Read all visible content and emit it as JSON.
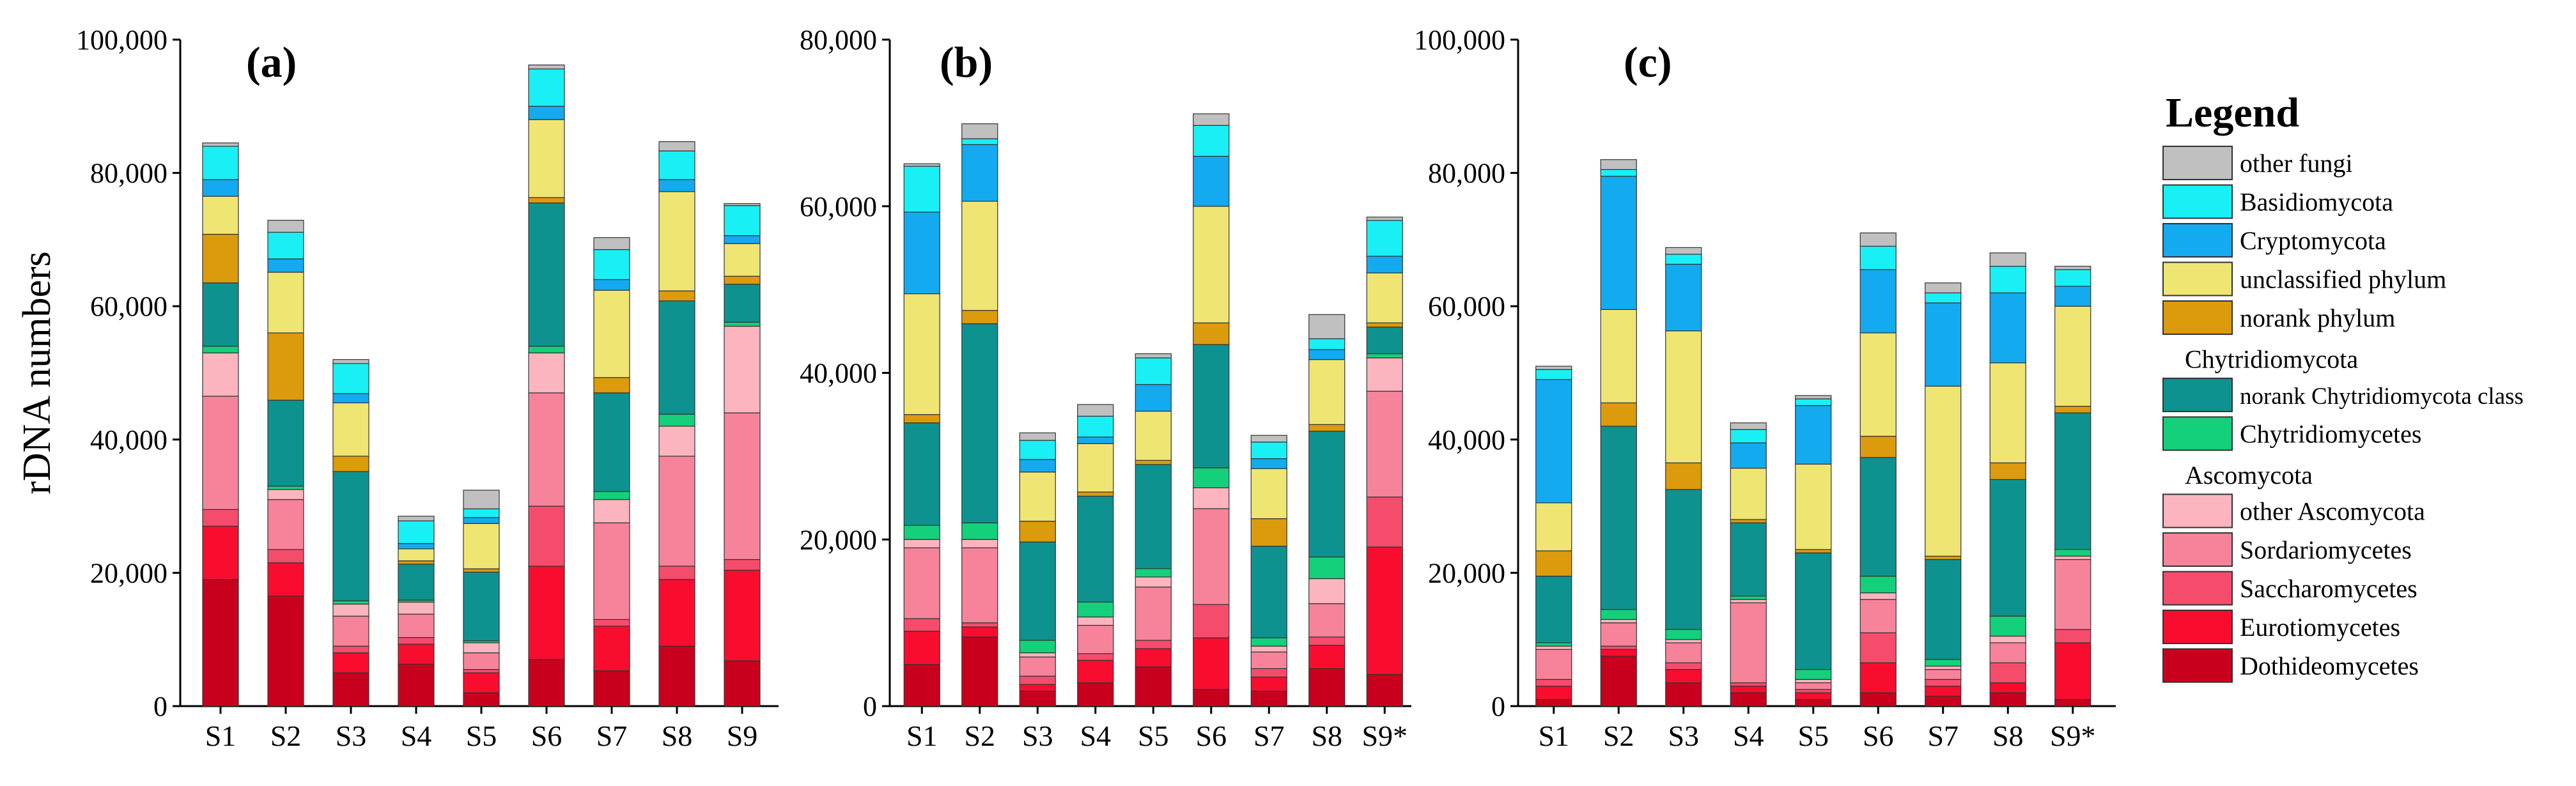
{
  "colors": {
    "other_fungi": "#c0c0c0",
    "basidiomycota": "#19f0f5",
    "cryptomycota": "#14aaf0",
    "unclassified_phylum": "#efe573",
    "norank_phylum": "#dc9a0d",
    "norank_chytridiomycota_class": "#0e9290",
    "chytridiomycetes": "#15d07a",
    "other_ascomycota": "#fcb4be",
    "sordariomycetes": "#f7839a",
    "saccharomycetes": "#f64c6c",
    "eurotiomycetes": "#f80d2f",
    "dothideomycetes": "#c8001d"
  },
  "legend": {
    "title": "Legend",
    "groups": [
      {
        "type": "item",
        "label": "other fungi",
        "color_key": "other_fungi"
      },
      {
        "type": "item",
        "label": "Basidiomycota",
        "color_key": "basidiomycota"
      },
      {
        "type": "item",
        "label": "Cryptomycota",
        "color_key": "cryptomycota"
      },
      {
        "type": "item",
        "label": "unclassified phylum",
        "color_key": "unclassified_phylum"
      },
      {
        "type": "item",
        "label": "norank phylum",
        "color_key": "norank_phylum"
      },
      {
        "type": "header",
        "label": "Chytridiomycota"
      },
      {
        "type": "item",
        "label": "norank Chytridiomycota class",
        "color_key": "norank_chytridiomycota_class",
        "small": true
      },
      {
        "type": "item",
        "label": "Chytridiomycetes",
        "color_key": "chytridiomycetes"
      },
      {
        "type": "header",
        "label": "Ascomycota"
      },
      {
        "type": "item",
        "label": "other Ascomycota",
        "color_key": "other_ascomycota"
      },
      {
        "type": "item",
        "label": "Sordariomycetes",
        "color_key": "sordariomycetes"
      },
      {
        "type": "item",
        "label": "Saccharomycetes",
        "color_key": "saccharomycetes"
      },
      {
        "type": "item",
        "label": "Eurotiomycetes",
        "color_key": "eurotiomycetes"
      },
      {
        "type": "item",
        "label": "Dothideomycetes",
        "color_key": "dothideomycetes"
      }
    ]
  },
  "chart_data": [
    {
      "type": "bar",
      "stacked": true,
      "panel_label": "(a)",
      "ylabel": "rDNA numbers",
      "xlabel": "",
      "ylim": [
        0,
        100000
      ],
      "yticks": [
        0,
        20000,
        40000,
        60000,
        80000,
        100000
      ],
      "ytick_labels": [
        "0",
        "20,000",
        "40,000",
        "60,000",
        "80,000",
        "100,000"
      ],
      "categories": [
        "S1",
        "S2",
        "S3",
        "S4",
        "S5",
        "S6",
        "S7",
        "S8",
        "S9"
      ],
      "series": [
        {
          "name": "Dothideomycetes",
          "color_key": "dothideomycetes",
          "values": [
            19000,
            16500,
            5000,
            6300,
            2000,
            7000,
            5300,
            9000,
            6800
          ]
        },
        {
          "name": "Eurotiomycetes",
          "color_key": "eurotiomycetes",
          "values": [
            8000,
            5000,
            3000,
            3000,
            3000,
            14000,
            6700,
            10000,
            13600
          ]
        },
        {
          "name": "Saccharomycetes",
          "color_key": "saccharomycetes",
          "values": [
            2500,
            2000,
            1000,
            1000,
            500,
            9000,
            1000,
            2000,
            1600
          ]
        },
        {
          "name": "Sordariomycetes",
          "color_key": "sordariomycetes",
          "values": [
            17000,
            7500,
            4500,
            3500,
            2500,
            17000,
            14500,
            16500,
            22000
          ]
        },
        {
          "name": "other Ascomycota",
          "color_key": "other_ascomycota",
          "values": [
            6500,
            1500,
            1800,
            1800,
            1500,
            6000,
            3500,
            4500,
            13000
          ]
        },
        {
          "name": "Chytridiomycetes",
          "color_key": "chytridiomycetes",
          "values": [
            1000,
            500,
            500,
            300,
            300,
            1000,
            1200,
            1800,
            600
          ]
        },
        {
          "name": "norank Chytridiomycota class",
          "color_key": "norank_chytridiomycota_class",
          "values": [
            9500,
            12900,
            19400,
            5400,
            10300,
            21500,
            14800,
            17000,
            5700
          ]
        },
        {
          "name": "norank phylum",
          "color_key": "norank_phylum",
          "values": [
            7300,
            10100,
            2300,
            500,
            500,
            800,
            2300,
            1500,
            1200
          ]
        },
        {
          "name": "unclassified phylum",
          "color_key": "unclassified_phylum",
          "values": [
            5700,
            9100,
            8000,
            1800,
            6800,
            11700,
            13100,
            14900,
            4900
          ]
        },
        {
          "name": "Cryptomycota",
          "color_key": "cryptomycota",
          "values": [
            2500,
            2000,
            1400,
            800,
            900,
            2000,
            1600,
            1800,
            1200
          ]
        },
        {
          "name": "Basidiomycota",
          "color_key": "basidiomycota",
          "values": [
            5000,
            4000,
            4500,
            3400,
            1300,
            5600,
            4500,
            4300,
            4500
          ]
        },
        {
          "name": "other fungi",
          "color_key": "other_fungi",
          "values": [
            500,
            1800,
            600,
            700,
            2800,
            600,
            1800,
            1400,
            300
          ]
        }
      ]
    },
    {
      "type": "bar",
      "stacked": true,
      "panel_label": "(b)",
      "ylabel": "",
      "xlabel": "",
      "ylim": [
        0,
        80000
      ],
      "yticks": [
        0,
        20000,
        40000,
        60000,
        80000
      ],
      "ytick_labels": [
        "0",
        "20,000",
        "40,000",
        "60,000",
        "80,000"
      ],
      "categories": [
        "S1",
        "S2",
        "S3",
        "S4",
        "S5",
        "S6",
        "S7",
        "S8",
        "S9*"
      ],
      "series": [
        {
          "name": "Dothideomycetes",
          "color_key": "dothideomycetes",
          "values": [
            5000,
            8300,
            1800,
            2800,
            4700,
            2000,
            1800,
            4500,
            3800
          ]
        },
        {
          "name": "Eurotiomycetes",
          "color_key": "eurotiomycetes",
          "values": [
            4000,
            1200,
            800,
            2700,
            2200,
            6200,
            1700,
            2800,
            15300
          ]
        },
        {
          "name": "Saccharomycetes",
          "color_key": "saccharomycetes",
          "values": [
            1500,
            500,
            1000,
            800,
            1000,
            4000,
            1000,
            1000,
            6000
          ]
        },
        {
          "name": "Sordariomycetes",
          "color_key": "sordariomycetes",
          "values": [
            8500,
            9000,
            2300,
            3400,
            6400,
            11500,
            2000,
            4000,
            12700
          ]
        },
        {
          "name": "other Ascomycota",
          "color_key": "other_ascomycota",
          "values": [
            1000,
            1000,
            500,
            1000,
            1200,
            2500,
            700,
            3000,
            4000
          ]
        },
        {
          "name": "Chytridiomycetes",
          "color_key": "chytridiomycetes",
          "values": [
            1700,
            2000,
            1500,
            1800,
            1000,
            2400,
            1000,
            2600,
            500
          ]
        },
        {
          "name": "norank Chytridiomycota class",
          "color_key": "norank_chytridiomycota_class",
          "values": [
            12300,
            23900,
            11800,
            12700,
            12500,
            14800,
            11000,
            15100,
            3200
          ]
        },
        {
          "name": "norank phylum",
          "color_key": "norank_phylum",
          "values": [
            1000,
            1600,
            2500,
            500,
            500,
            2600,
            3300,
            800,
            500
          ]
        },
        {
          "name": "unclassified phylum",
          "color_key": "unclassified_phylum",
          "values": [
            14500,
            13100,
            5900,
            5800,
            5900,
            14000,
            6000,
            7800,
            6000
          ]
        },
        {
          "name": "Cryptomycota",
          "color_key": "cryptomycota",
          "values": [
            9800,
            6800,
            1500,
            800,
            3200,
            6000,
            1200,
            1200,
            2000
          ]
        },
        {
          "name": "Basidiomycota",
          "color_key": "basidiomycota",
          "values": [
            5500,
            700,
            2300,
            2500,
            3200,
            3700,
            2000,
            1300,
            4300
          ]
        },
        {
          "name": "other fungi",
          "color_key": "other_fungi",
          "values": [
            300,
            1800,
            900,
            1400,
            500,
            1400,
            800,
            2900,
            400
          ]
        }
      ]
    },
    {
      "type": "bar",
      "stacked": true,
      "panel_label": "(c)",
      "ylabel": "",
      "xlabel": "",
      "ylim": [
        0,
        100000
      ],
      "yticks": [
        0,
        20000,
        40000,
        60000,
        80000,
        100000
      ],
      "ytick_labels": [
        "0",
        "20,000",
        "40,000",
        "60,000",
        "80,000",
        "100,000"
      ],
      "categories": [
        "S1",
        "S2",
        "S3",
        "S4",
        "S5",
        "S6",
        "S7",
        "S8",
        "S9*"
      ],
      "series": [
        {
          "name": "Dothideomycetes",
          "color_key": "dothideomycetes",
          "values": [
            1000,
            7500,
            3500,
            2000,
            1000,
            2000,
            1500,
            2000,
            1000
          ]
        },
        {
          "name": "Eurotiomycetes",
          "color_key": "eurotiomycetes",
          "values": [
            2000,
            1000,
            2000,
            1000,
            1000,
            4500,
            1500,
            1500,
            8500
          ]
        },
        {
          "name": "Saccharomycetes",
          "color_key": "saccharomycetes",
          "values": [
            1000,
            500,
            1000,
            500,
            500,
            4500,
            1000,
            3000,
            2000
          ]
        },
        {
          "name": "Sordariomycetes",
          "color_key": "sordariomycetes",
          "values": [
            4500,
            3500,
            3000,
            12000,
            1000,
            5000,
            1500,
            3000,
            10500
          ]
        },
        {
          "name": "other Ascomycota",
          "color_key": "other_ascomycota",
          "values": [
            500,
            500,
            500,
            500,
            500,
            1000,
            500,
            1000,
            500
          ]
        },
        {
          "name": "Chytridiomycetes",
          "color_key": "chytridiomycetes",
          "values": [
            500,
            1500,
            1500,
            500,
            1500,
            2500,
            1000,
            3000,
            1000
          ]
        },
        {
          "name": "norank Chytridiomycota class",
          "color_key": "norank_chytridiomycota_class",
          "values": [
            10000,
            27500,
            21000,
            11000,
            17500,
            17800,
            15000,
            20500,
            20500
          ]
        },
        {
          "name": "norank phylum",
          "color_key": "norank_phylum",
          "values": [
            3800,
            3500,
            4000,
            500,
            500,
            3200,
            500,
            2500,
            1000
          ]
        },
        {
          "name": "unclassified phylum",
          "color_key": "unclassified_phylum",
          "values": [
            7200,
            14000,
            19800,
            7700,
            12800,
            15500,
            25500,
            15000,
            15000
          ]
        },
        {
          "name": "Cryptomycota",
          "color_key": "cryptomycota",
          "values": [
            18500,
            20000,
            10000,
            3800,
            8800,
            9500,
            12500,
            10500,
            3000
          ]
        },
        {
          "name": "Basidiomycota",
          "color_key": "basidiomycota",
          "values": [
            1500,
            1000,
            1500,
            2000,
            1000,
            3500,
            1500,
            4000,
            2500
          ]
        },
        {
          "name": "other fungi",
          "color_key": "other_fungi",
          "values": [
            500,
            1500,
            1000,
            1000,
            500,
            2000,
            1500,
            2000,
            500
          ]
        }
      ]
    }
  ]
}
